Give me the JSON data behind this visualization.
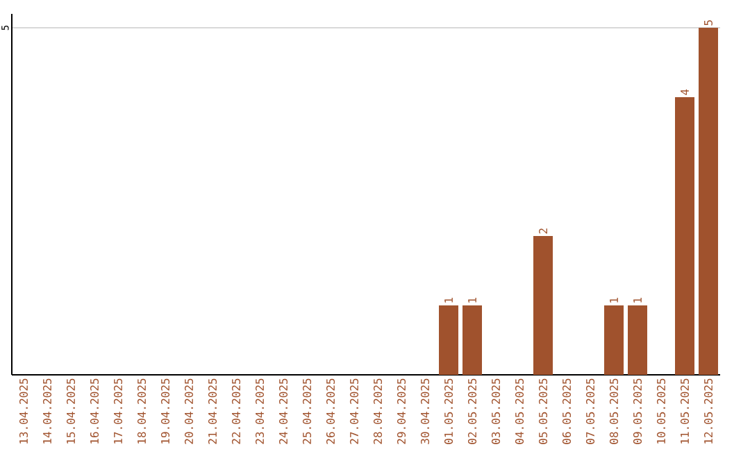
{
  "chart_data": {
    "type": "bar",
    "categories": [
      "13.04.2025",
      "14.04.2025",
      "15.04.2025",
      "16.04.2025",
      "17.04.2025",
      "18.04.2025",
      "19.04.2025",
      "20.04.2025",
      "21.04.2025",
      "22.04.2025",
      "23.04.2025",
      "24.04.2025",
      "25.04.2025",
      "26.04.2025",
      "27.04.2025",
      "28.04.2025",
      "29.04.2025",
      "30.04.2025",
      "01.05.2025",
      "02.05.2025",
      "03.05.2025",
      "04.05.2025",
      "05.05.2025",
      "06.05.2025",
      "07.05.2025",
      "08.05.2025",
      "09.05.2025",
      "10.05.2025",
      "11.05.2025",
      "12.05.2025"
    ],
    "values": [
      null,
      null,
      null,
      null,
      null,
      null,
      null,
      null,
      null,
      null,
      null,
      null,
      null,
      null,
      null,
      null,
      null,
      null,
      1,
      1,
      null,
      null,
      2,
      null,
      null,
      1,
      1,
      null,
      4,
      5
    ],
    "color": "#a0522d",
    "ylim": [
      0,
      5.2
    ],
    "yticks": [
      5
    ],
    "grid": "y",
    "data_labels": true
  }
}
